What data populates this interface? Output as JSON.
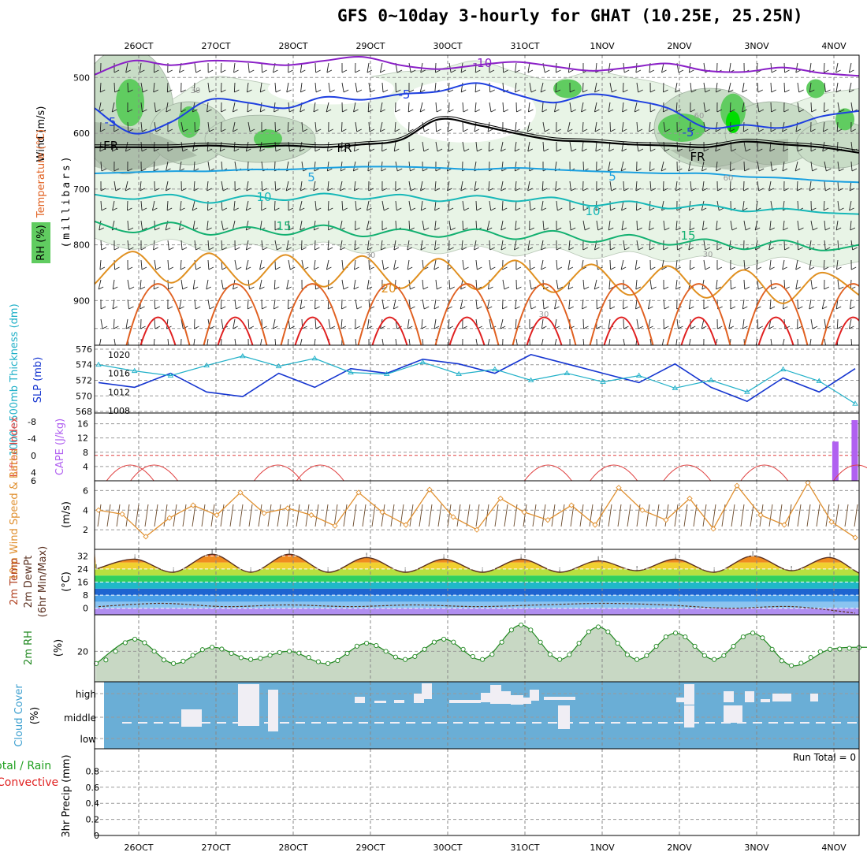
{
  "title": "GFS 0~10day 3-hourly for GHAT (10.25E, 25.25N)",
  "colors": {
    "temp_line_cold": "#8a1fc7",
    "temp_line_cool": "#1e3fe0",
    "temp_line_mild": "#1aa0e0",
    "temp_line_warm": "#17b8b8",
    "temp_line_15": "#12b070",
    "temp_line_20": "#e09020",
    "temp_line_25": "#e06020",
    "temp_line_30": "#e02020",
    "freezing": "#000000",
    "rh_light": "#e8f4e6",
    "rh_mid": "#c8dcc6",
    "rh_dark": "#9aaa98",
    "rh_green": "#60cc60",
    "rh_bright": "#00dd00",
    "slp": "#1535d0",
    "thickness": "#20b0c8",
    "cape": "#b060f0",
    "lifted_index": "#e04040",
    "wind10m": "#e09030",
    "rh2m": "#208820",
    "cloud_bg": "#6aaed6",
    "cloud_fill": "#f0eef4"
  },
  "chart_data": [
    {
      "panel": "upper-air",
      "type": "contour",
      "ylabel_parts": [
        "Wind (m/s)",
        "Temperature (°C)",
        "RH (%)"
      ],
      "yunit": "(millibars)",
      "y_ticks": [
        "500",
        "600",
        "700",
        "800",
        "900"
      ],
      "ylim": [
        980,
        460
      ],
      "x_ticks": [
        "26OCT",
        "27OCT",
        "28OCT",
        "29OCT",
        "30OCT",
        "31OCT",
        "1NOV",
        "2NOV",
        "3NOV",
        "4NOV"
      ],
      "contour_labels": [
        "-10",
        "-5",
        "-5",
        "-FR",
        "FR",
        "FR",
        "5",
        "5",
        "10",
        "10",
        "15",
        "15",
        "20",
        "30",
        "30",
        "30",
        "30",
        "60",
        "60"
      ],
      "isotherms": [
        {
          "name": "-10",
          "values_mb": [
            495,
            470,
            478,
            470,
            472,
            478,
            470,
            463,
            478,
            485,
            478,
            472,
            480,
            488,
            482,
            475,
            488,
            490,
            482,
            492,
            497
          ]
        },
        {
          "name": "-5",
          "values_mb": [
            555,
            600,
            580,
            540,
            545,
            555,
            535,
            540,
            530,
            525,
            510,
            530,
            545,
            530,
            540,
            555,
            590,
            585,
            590,
            570,
            560
          ]
        },
        {
          "name": "0",
          "values_mb": [
            625,
            625,
            625,
            622,
            625,
            622,
            625,
            620,
            612,
            575,
            585,
            600,
            612,
            615,
            620,
            622,
            625,
            615,
            620,
            625,
            635
          ]
        },
        {
          "name": "5",
          "values_mb": [
            672,
            670,
            668,
            668,
            665,
            665,
            662,
            660,
            660,
            662,
            665,
            662,
            665,
            668,
            670,
            672,
            672,
            678,
            680,
            685,
            688
          ]
        },
        {
          "name": "10",
          "values_mb": [
            710,
            718,
            710,
            725,
            712,
            720,
            708,
            718,
            710,
            722,
            712,
            722,
            715,
            730,
            722,
            735,
            728,
            740,
            735,
            742,
            745
          ]
        },
        {
          "name": "15",
          "values_mb": [
            758,
            778,
            760,
            782,
            768,
            782,
            765,
            785,
            772,
            786,
            772,
            790,
            775,
            795,
            782,
            800,
            790,
            808,
            792,
            810,
            800
          ]
        },
        {
          "name": "20",
          "values_mb": [
            870,
            812,
            868,
            815,
            872,
            818,
            875,
            820,
            878,
            825,
            880,
            828,
            885,
            835,
            890,
            838,
            895,
            845,
            905,
            850,
            890
          ]
        }
      ]
    },
    {
      "panel": "thickness-slp",
      "type": "line",
      "ylabel_left": "1000~500mb Thickness (dm)",
      "ylabel_right": "SLP (mb)",
      "left_ticks": [
        "576",
        "574",
        "572",
        "570",
        "568"
      ],
      "right_ticks": [
        "1020",
        "1016",
        "1012",
        "1008"
      ],
      "series": [
        {
          "name": "SLP (mb)",
          "values": [
            1014,
            1013,
            1016,
            1012,
            1011,
            1016,
            1013,
            1017,
            1016,
            1019,
            1018,
            1016,
            1020,
            1018,
            1016,
            1014,
            1018,
            1013,
            1010,
            1015,
            1012,
            1017
          ]
        },
        {
          "name": "1000~500mb Thickness (dm)",
          "values": [
            574.0,
            573.2,
            572.6,
            573.9,
            575.1,
            573.8,
            574.8,
            573.0,
            572.8,
            574.3,
            572.8,
            573.4,
            572.0,
            572.9,
            571.8,
            572.6,
            571.0,
            572.0,
            570.5,
            573.4,
            571.9,
            569.0
          ]
        }
      ]
    },
    {
      "panel": "cape-li",
      "type": "bar",
      "ylabel_left": "Lifted Index",
      "ylabel_right": "CAPE (J/kg)",
      "left_ticks": [
        "-8",
        "-4",
        "0",
        "4",
        "6"
      ],
      "right_ticks": [
        "16",
        "12",
        "8",
        "4"
      ],
      "cape_bars": [
        {
          "day": 9.2,
          "value": 11
        },
        {
          "day": 9.45,
          "value": 17
        }
      ]
    },
    {
      "panel": "wind10m",
      "type": "line",
      "ylabel": "10m Wind Speed & Barbs",
      "yunit": "(m/s)",
      "y_ticks": [
        "6",
        "4",
        "2"
      ],
      "ylim": [
        0,
        7
      ],
      "series": [
        {
          "name": "10m Wind Speed",
          "values": [
            4,
            3.6,
            1.3,
            3.2,
            4.5,
            3.5,
            5.8,
            3.7,
            4.2,
            3.5,
            2.4,
            5.8,
            3.8,
            2.5,
            6.1,
            3.3,
            2.0,
            5.2,
            3.8,
            3.0,
            4.5,
            2.5,
            6.3,
            4.0,
            3.0,
            5.2,
            2.1,
            6.5,
            3.5,
            2.5,
            6.8,
            2.8,
            1.2
          ]
        }
      ]
    },
    {
      "panel": "temp2m",
      "type": "area",
      "ylabel": "2m Temp 2m DewPt (6hr Min/Max)",
      "yunit": "(°C)",
      "y_ticks": [
        "32",
        "24",
        "16",
        "8",
        "0"
      ],
      "ylim": [
        -4,
        36
      ],
      "series": [
        {
          "name": "2m Temp",
          "max": [
            30,
            33,
            33,
            31,
            30,
            30,
            29,
            30,
            32,
            31,
            33
          ],
          "min": [
            24,
            22,
            22,
            22,
            22,
            22,
            22,
            23,
            22,
            23,
            20
          ]
        },
        {
          "name": "2m DewPt",
          "values": [
            1,
            3,
            1,
            2,
            1,
            2,
            1,
            2,
            3,
            2,
            0,
            1,
            -3
          ]
        }
      ]
    },
    {
      "panel": "rh2m",
      "type": "line",
      "ylabel": "2m RH",
      "yunit": "(%)",
      "y_ticks": [
        "20"
      ],
      "ylim": [
        5,
        38
      ],
      "series": [
        {
          "name": "2m RH",
          "values": [
            14,
            26,
            14,
            22,
            16,
            20,
            14,
            24,
            16,
            26,
            16,
            33,
            16,
            32,
            16,
            29,
            16,
            29,
            13,
            21,
            22
          ]
        }
      ]
    },
    {
      "panel": "cloud",
      "type": "heatmap",
      "ylabel": "Cloud Cover",
      "yunit": "(%)",
      "y_ticks": [
        "high",
        "middle",
        "low"
      ]
    },
    {
      "panel": "precip",
      "type": "bar",
      "ylabel_left": "Total / Rain",
      "ylabel_right": "Convective",
      "ylabel": "3hr Precip (mm)",
      "y_ticks": [
        "0.8",
        "0.6",
        "0.4",
        "0.2",
        "0"
      ],
      "ylim": [
        0,
        1
      ],
      "run_total": "Run Total = 0",
      "values": []
    }
  ]
}
